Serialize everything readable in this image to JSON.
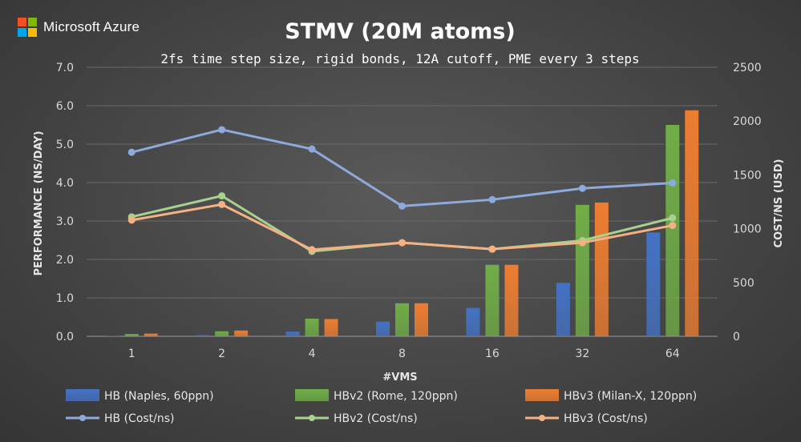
{
  "brand": {
    "name": "Microsoft Azure",
    "logo_colors": [
      "#f25022",
      "#7fba00",
      "#00a4ef",
      "#ffb900"
    ]
  },
  "chart_data": {
    "type": "bar",
    "title": "STMV (20M atoms)",
    "subtitle": "2fs time step size, rigid bonds, 12A cutoff, PME every 3 steps",
    "xlabel": "#VMS",
    "ylabel": "PERFORMANCE (NS/DAY)",
    "y2label": "COST/NS (USD)",
    "categories": [
      "1",
      "2",
      "4",
      "8",
      "16",
      "32",
      "64"
    ],
    "ylim": [
      0,
      7
    ],
    "y_ticks": [
      "0.0",
      "1.0",
      "2.0",
      "3.0",
      "4.0",
      "5.0",
      "6.0",
      "7.0"
    ],
    "y2lim": [
      0,
      2500
    ],
    "y2_ticks": [
      "0",
      "500",
      "1000",
      "1500",
      "2000",
      "2500"
    ],
    "grid": true,
    "legend_position": "bottom",
    "series": [
      {
        "name": "HB (Naples, 60ppn)",
        "kind": "bar",
        "axis": "left",
        "color": "#4472c4",
        "values": [
          0.01,
          0.03,
          0.12,
          0.38,
          0.74,
          1.39,
          2.7
        ]
      },
      {
        "name": "HBv2 (Rome, 120ppn)",
        "kind": "bar",
        "axis": "left",
        "color": "#70ad47",
        "values": [
          0.06,
          0.13,
          0.46,
          0.86,
          1.86,
          3.42,
          5.5
        ]
      },
      {
        "name": "HBv3 (Milan-X, 120ppn)",
        "kind": "bar",
        "axis": "left",
        "color": "#ed7d31",
        "values": [
          0.07,
          0.15,
          0.45,
          0.86,
          1.86,
          3.48,
          5.88
        ]
      },
      {
        "name": "HB (Cost/ns)",
        "kind": "line",
        "axis": "right",
        "color": "#8ea9db",
        "values": [
          1710,
          1920,
          1740,
          1210,
          1270,
          1375,
          1425
        ]
      },
      {
        "name": "HBv2 (Cost/ns)",
        "kind": "line",
        "axis": "right",
        "color": "#a9d18e",
        "values": [
          1110,
          1305,
          790,
          870,
          810,
          890,
          1100
        ]
      },
      {
        "name": "HBv3 (Cost/ns)",
        "kind": "line",
        "axis": "right",
        "color": "#f4b183",
        "values": [
          1080,
          1225,
          805,
          870,
          810,
          870,
          1030
        ]
      }
    ]
  }
}
